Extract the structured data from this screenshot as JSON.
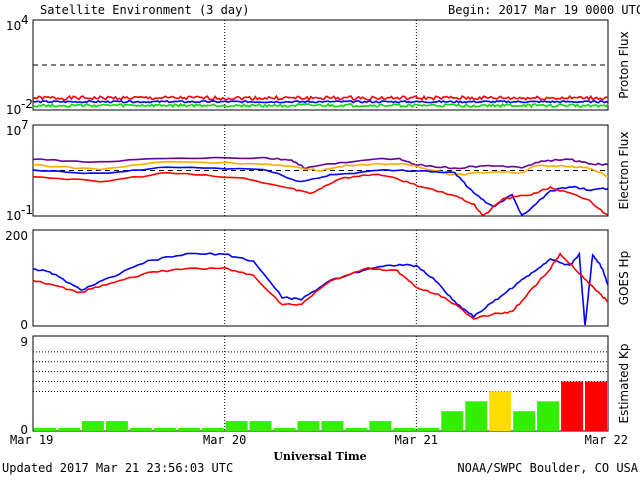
{
  "header": {
    "title": "Satellite Environment (3 day)",
    "begin": "Begin:  2017 Mar 19 0000 UTC"
  },
  "footer": {
    "updated": "Updated 2017 Mar 21 23:56:03 UTC",
    "credit": "NOAA/SWPC Boulder, CO USA",
    "xlabel": "Universal Time"
  },
  "x_ticks": [
    "Mar 19",
    "Mar 20",
    "Mar 21",
    "Mar 22"
  ],
  "chart_data": [
    {
      "type": "line",
      "panel": "proton",
      "ylabel": "Proton Flux",
      "yscale": "log",
      "ylim_exp": [
        -2,
        4
      ],
      "ytick_base": "10",
      "ytick_exps": [
        "4",
        "-2"
      ],
      "threshold_exp": 1,
      "x_range_days": [
        0,
        3
      ],
      "series": [
        {
          "color": "#ff0000",
          "level_exp": -1.2,
          "noise": 0.25
        },
        {
          "color": "#0000ff",
          "level_exp": -1.45,
          "noise": 0.12
        },
        {
          "color": "#00dd00",
          "level_exp": -1.7,
          "noise": 0.2
        }
      ]
    },
    {
      "type": "line",
      "panel": "electron",
      "ylabel": "Electron Flux",
      "yscale": "log",
      "ylim_exp": [
        -1,
        7
      ],
      "ytick_base": "10",
      "ytick_exps": [
        "7",
        "-1"
      ],
      "threshold_exp": 3,
      "x_range_days": [
        0,
        3
      ],
      "series": [
        {
          "color": "#660099",
          "points": [
            [
              0,
              4.0
            ],
            [
              0.3,
              3.7
            ],
            [
              0.7,
              4.1
            ],
            [
              1.2,
              4.1
            ],
            [
              1.35,
              3.9
            ],
            [
              1.42,
              3.2
            ],
            [
              1.6,
              3.7
            ],
            [
              1.9,
              4.1
            ],
            [
              2.0,
              3.5
            ],
            [
              2.2,
              3.2
            ],
            [
              2.35,
              3.4
            ],
            [
              2.55,
              3.3
            ],
            [
              2.65,
              3.8
            ],
            [
              2.8,
              4.0
            ],
            [
              2.9,
              3.6
            ],
            [
              3.0,
              3.5
            ]
          ]
        },
        {
          "color": "#ffaa00",
          "points": [
            [
              0,
              3.5
            ],
            [
              0.35,
              3.1
            ],
            [
              0.7,
              3.8
            ],
            [
              1.2,
              3.6
            ],
            [
              1.4,
              3.2
            ],
            [
              1.5,
              3.0
            ],
            [
              1.65,
              3.5
            ],
            [
              1.9,
              3.6
            ],
            [
              2.0,
              3.4
            ],
            [
              2.2,
              2.6
            ],
            [
              2.4,
              2.9
            ],
            [
              2.55,
              2.8
            ],
            [
              2.62,
              3.4
            ],
            [
              2.8,
              3.4
            ],
            [
              2.9,
              3.2
            ],
            [
              3.0,
              2.5
            ]
          ]
        },
        {
          "color": "#0000ff",
          "points": [
            [
              0,
              3.0
            ],
            [
              0.35,
              2.7
            ],
            [
              0.7,
              3.3
            ],
            [
              1.2,
              3.1
            ],
            [
              1.4,
              2.0
            ],
            [
              1.55,
              2.6
            ],
            [
              1.8,
              3.0
            ],
            [
              2.0,
              3.0
            ],
            [
              2.2,
              2.8
            ],
            [
              2.3,
              1.0
            ],
            [
              2.4,
              -0.2
            ],
            [
              2.5,
              0.9
            ],
            [
              2.55,
              -1.0
            ],
            [
              2.7,
              1.2
            ],
            [
              2.8,
              1.6
            ],
            [
              2.9,
              1.3
            ],
            [
              3.0,
              1.4
            ]
          ]
        },
        {
          "color": "#ff0000",
          "points": [
            [
              0,
              2.5
            ],
            [
              0.35,
              2.0
            ],
            [
              0.7,
              2.8
            ],
            [
              1.1,
              2.3
            ],
            [
              1.35,
              1.4
            ],
            [
              1.45,
              1.0
            ],
            [
              1.6,
              2.3
            ],
            [
              1.8,
              2.7
            ],
            [
              1.95,
              2.0
            ],
            [
              2.1,
              1.2
            ],
            [
              2.2,
              0.8
            ],
            [
              2.3,
              0.0
            ],
            [
              2.35,
              -1.0
            ],
            [
              2.45,
              0.5
            ],
            [
              2.6,
              0.9
            ],
            [
              2.7,
              1.5
            ],
            [
              2.8,
              1.0
            ],
            [
              2.9,
              0.4
            ],
            [
              3.0,
              -1.0
            ]
          ]
        }
      ]
    },
    {
      "type": "line",
      "panel": "goes_hp",
      "ylabel": "GOES Hp",
      "yscale": "linear",
      "ylim": [
        0,
        200
      ],
      "yticks": [
        "200",
        "0"
      ],
      "x_range_days": [
        0,
        3
      ],
      "series": [
        {
          "color": "#0000ff",
          "points": [
            [
              0,
              120
            ],
            [
              0.1,
              110
            ],
            [
              0.25,
              75
            ],
            [
              0.4,
              100
            ],
            [
              0.6,
              135
            ],
            [
              0.8,
              150
            ],
            [
              1.0,
              150
            ],
            [
              1.15,
              135
            ],
            [
              1.3,
              60
            ],
            [
              1.4,
              55
            ],
            [
              1.55,
              95
            ],
            [
              1.75,
              120
            ],
            [
              1.9,
              128
            ],
            [
              2.0,
              125
            ],
            [
              2.1,
              95
            ],
            [
              2.2,
              50
            ],
            [
              2.3,
              20
            ],
            [
              2.4,
              50
            ],
            [
              2.5,
              80
            ],
            [
              2.6,
              110
            ],
            [
              2.7,
              140
            ],
            [
              2.8,
              125
            ],
            [
              2.85,
              150
            ],
            [
              2.88,
              0
            ],
            [
              2.92,
              150
            ],
            [
              2.97,
              120
            ],
            [
              3.0,
              85
            ]
          ]
        },
        {
          "color": "#ff0000",
          "points": [
            [
              0,
              95
            ],
            [
              0.1,
              85
            ],
            [
              0.25,
              70
            ],
            [
              0.4,
              90
            ],
            [
              0.6,
              110
            ],
            [
              0.8,
              120
            ],
            [
              1.0,
              120
            ],
            [
              1.15,
              105
            ],
            [
              1.3,
              45
            ],
            [
              1.4,
              45
            ],
            [
              1.55,
              95
            ],
            [
              1.75,
              120
            ],
            [
              1.9,
              115
            ],
            [
              2.0,
              80
            ],
            [
              2.15,
              60
            ],
            [
              2.3,
              15
            ],
            [
              2.4,
              25
            ],
            [
              2.5,
              30
            ],
            [
              2.6,
              75
            ],
            [
              2.7,
              120
            ],
            [
              2.75,
              150
            ],
            [
              2.85,
              110
            ],
            [
              2.95,
              70
            ],
            [
              3.0,
              50
            ]
          ]
        }
      ]
    },
    {
      "type": "bar",
      "panel": "kp",
      "ylabel": "Estimated Kp",
      "ylim": [
        0,
        9
      ],
      "yticks": [
        "9",
        "0"
      ],
      "x_range_days": [
        0,
        3
      ],
      "threshold_lines": [
        4,
        5,
        6,
        7,
        8
      ],
      "values": [
        0.3,
        0.3,
        1.0,
        1.0,
        0.3,
        0.3,
        0.3,
        0.3,
        1.0,
        1.0,
        0.3,
        1.0,
        1.0,
        0.3,
        1.0,
        0.3,
        0.3,
        2.0,
        3.0,
        4.0,
        2.0,
        3.0,
        5.0,
        5.0
      ],
      "colors": [
        "#33ee00",
        "#33ee00",
        "#33ee00",
        "#33ee00",
        "#33ee00",
        "#33ee00",
        "#33ee00",
        "#33ee00",
        "#33ee00",
        "#33ee00",
        "#33ee00",
        "#33ee00",
        "#33ee00",
        "#33ee00",
        "#33ee00",
        "#33ee00",
        "#33ee00",
        "#33ee00",
        "#33ee00",
        "#ffdd00",
        "#33ee00",
        "#33ee00",
        "#ff0000",
        "#ff0000"
      ]
    }
  ]
}
